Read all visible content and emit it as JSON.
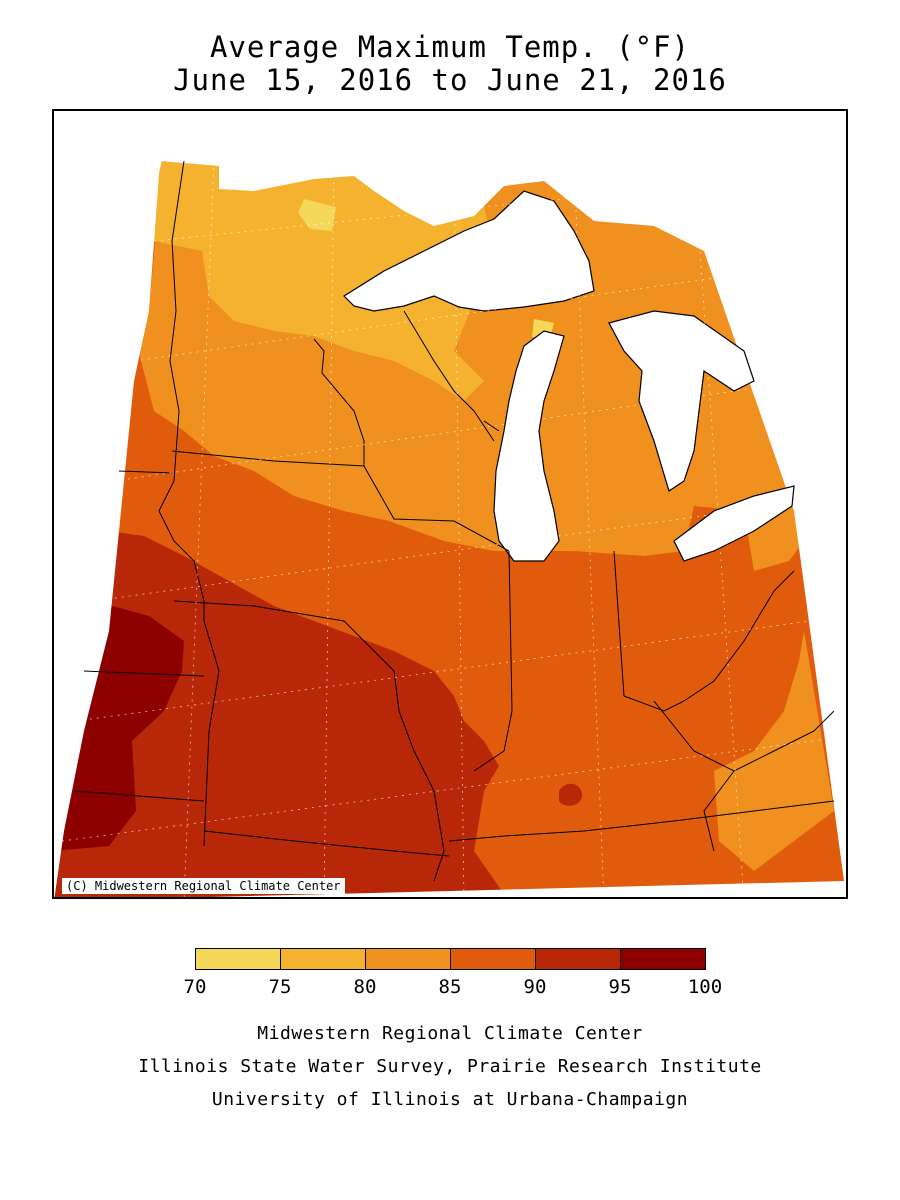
{
  "title": {
    "line1": "Average Maximum Temp. (°F)",
    "line2": "June 15, 2016 to June 21, 2016"
  },
  "map": {
    "copyright": "(C) Midwestern Regional Climate Center",
    "band_colors": {
      "70-75": "#f5d85a",
      "75-80": "#f5b22e",
      "80-85": "#f0901e",
      "85-90": "#e05c0c",
      "90-95": "#b82808",
      "95-100": "#8c0000"
    },
    "water_color": "#ffffff",
    "line_color": "#000000"
  },
  "legend": {
    "ticks": [
      "70",
      "75",
      "80",
      "85",
      "90",
      "95",
      "100"
    ],
    "colors": [
      "#f5d85a",
      "#f5b22e",
      "#f0901e",
      "#e05c0c",
      "#b82808",
      "#8c0000"
    ]
  },
  "credits": {
    "line1": "Midwestern Regional Climate Center",
    "line2": "Illinois State Water Survey, Prairie Research Institute",
    "line3": "University of Illinois at Urbana-Champaign"
  }
}
